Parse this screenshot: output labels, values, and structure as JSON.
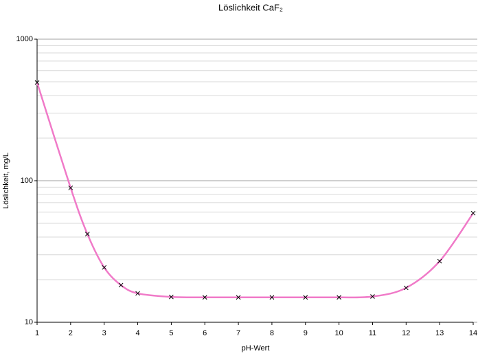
{
  "chart_data": {
    "type": "line",
    "title": "Löslichkeit CaF₂",
    "x_label": "pH-Wert",
    "y_label": "Löslichkeit, mg/L",
    "x": [
      1,
      2,
      2.5,
      3,
      3.5,
      4,
      5,
      6,
      7,
      8,
      9,
      10,
      11,
      12,
      13,
      14
    ],
    "series": [
      {
        "name": "Löslichkeit",
        "color": "#f07ac8",
        "values": [
          494,
          89,
          42,
          24.4,
          18.3,
          16,
          15.1,
          15,
          15,
          15,
          15,
          15,
          15.2,
          17.5,
          27,
          59
        ]
      }
    ],
    "marker": "x",
    "marker_color": "#000000",
    "xlim": [
      1,
      14
    ],
    "xticks": [
      1,
      2,
      3,
      4,
      5,
      6,
      7,
      8,
      9,
      10,
      11,
      12,
      13,
      14
    ],
    "ylim": [
      10,
      1000
    ],
    "yticks": [
      10,
      100,
      1000
    ],
    "ylog": true,
    "grid": true,
    "minor_grid": true
  }
}
